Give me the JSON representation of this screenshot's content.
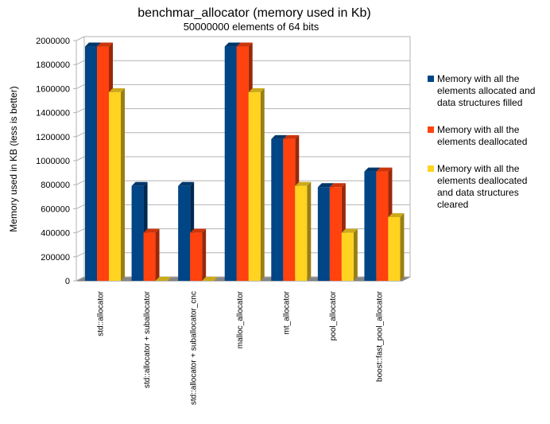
{
  "chart_data": {
    "type": "bar",
    "title": "benchmar_allocator (memory used in Kb)",
    "subtitle": "50000000 elements of 64 bits",
    "xlabel": "",
    "ylabel": "Memory used in KB (less is better)",
    "ylim": [
      0,
      2000000
    ],
    "yticks": [
      0,
      200000,
      400000,
      600000,
      800000,
      1000000,
      1200000,
      1400000,
      1600000,
      1800000,
      2000000
    ],
    "grid": true,
    "legend_position": "right",
    "categories": [
      "std::allocator",
      "std::allocator + suballocator",
      "std::allocator + suballocator_cnc",
      "malloc_allocator",
      "mt_allocator",
      "pool_allocator",
      "boost::fast_pool_allocator"
    ],
    "series": [
      {
        "name": "Memory with all the elements allocated and data structures filled",
        "legend_lines": [
          "Memory with all the",
          "elements allocated and",
          "data structures filled"
        ],
        "color": "#004586",
        "values": [
          1950000,
          790000,
          790000,
          1950000,
          1180000,
          780000,
          910000
        ]
      },
      {
        "name": "Memory with all the elements deallocated",
        "legend_lines": [
          "Memory with all the",
          "elements deallocated"
        ],
        "color": "#ff420e",
        "values": [
          1950000,
          400000,
          400000,
          1950000,
          1180000,
          780000,
          910000
        ]
      },
      {
        "name": "Memory with all the elements deallocated and data structures cleared",
        "legend_lines": [
          "Memory with all the",
          "elements deallocated",
          "and data structures",
          "cleared"
        ],
        "color": "#ffd320",
        "values": [
          1570000,
          0,
          0,
          1570000,
          790000,
          400000,
          530000
        ]
      }
    ]
  }
}
